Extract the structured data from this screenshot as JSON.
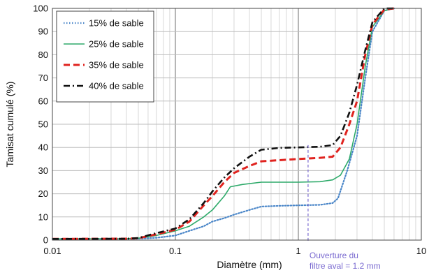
{
  "chart_data": {
    "type": "line",
    "xlabel": "Diamètre  (mm)",
    "ylabel": "Tamisat cumulé (%)",
    "xscale": "log",
    "xlim": [
      0.01,
      10
    ],
    "ylim": [
      0,
      100
    ],
    "grid": true,
    "legend_position": "top-left",
    "x_tick_labels": [
      "0.01",
      "0.1",
      "1",
      "10"
    ],
    "y_tick_labels": [
      "0",
      "10",
      "20",
      "30",
      "40",
      "50",
      "60",
      "70",
      "80",
      "90",
      "100"
    ],
    "series": [
      {
        "name": "15% de sable",
        "style": "dotted",
        "color": "#4a86c8",
        "points": [
          [
            0.01,
            0.5
          ],
          [
            0.04,
            0.5
          ],
          [
            0.05,
            0.6
          ],
          [
            0.07,
            1
          ],
          [
            0.1,
            2
          ],
          [
            0.13,
            4
          ],
          [
            0.17,
            6
          ],
          [
            0.2,
            8
          ],
          [
            0.25,
            9.5
          ],
          [
            0.3,
            11
          ],
          [
            0.4,
            13
          ],
          [
            0.5,
            14.5
          ],
          [
            0.7,
            14.8
          ],
          [
            1,
            15
          ],
          [
            1.5,
            15.2
          ],
          [
            1.9,
            16
          ],
          [
            2.1,
            18
          ],
          [
            2.5,
            30
          ],
          [
            3,
            45
          ],
          [
            3.5,
            70
          ],
          [
            4,
            90
          ],
          [
            5,
            99
          ],
          [
            6,
            100
          ]
        ]
      },
      {
        "name": "25% de sable",
        "style": "solid",
        "color": "#2eaa6a",
        "points": [
          [
            0.01,
            0.5
          ],
          [
            0.04,
            0.6
          ],
          [
            0.05,
            0.8
          ],
          [
            0.07,
            2
          ],
          [
            0.1,
            4
          ],
          [
            0.13,
            6
          ],
          [
            0.17,
            10
          ],
          [
            0.2,
            13
          ],
          [
            0.25,
            19
          ],
          [
            0.28,
            23
          ],
          [
            0.35,
            24
          ],
          [
            0.5,
            25
          ],
          [
            1,
            25
          ],
          [
            1.5,
            25.2
          ],
          [
            1.9,
            26
          ],
          [
            2.2,
            28
          ],
          [
            2.6,
            35
          ],
          [
            3,
            50
          ],
          [
            3.5,
            75
          ],
          [
            4,
            92
          ],
          [
            5,
            99
          ],
          [
            6,
            100
          ]
        ]
      },
      {
        "name": "35% de sable",
        "style": "dashed",
        "color": "#e0231f",
        "points": [
          [
            0.01,
            0.5
          ],
          [
            0.04,
            0.6
          ],
          [
            0.05,
            0.8
          ],
          [
            0.07,
            2.5
          ],
          [
            0.1,
            4.5
          ],
          [
            0.13,
            8
          ],
          [
            0.17,
            15
          ],
          [
            0.2,
            19
          ],
          [
            0.25,
            25
          ],
          [
            0.3,
            29
          ],
          [
            0.4,
            32
          ],
          [
            0.5,
            34
          ],
          [
            0.7,
            34.5
          ],
          [
            1,
            35
          ],
          [
            1.5,
            35.5
          ],
          [
            1.9,
            36
          ],
          [
            2.2,
            40
          ],
          [
            2.6,
            50
          ],
          [
            3,
            60
          ],
          [
            3.5,
            80
          ],
          [
            4,
            93
          ],
          [
            5,
            99.5
          ],
          [
            6,
            100
          ]
        ]
      },
      {
        "name": "40% de sable",
        "style": "dashdot",
        "color": "#111111",
        "points": [
          [
            0.01,
            0.5
          ],
          [
            0.04,
            0.6
          ],
          [
            0.05,
            0.9
          ],
          [
            0.07,
            3
          ],
          [
            0.1,
            5
          ],
          [
            0.13,
            9
          ],
          [
            0.17,
            16
          ],
          [
            0.2,
            21
          ],
          [
            0.25,
            27
          ],
          [
            0.3,
            31
          ],
          [
            0.4,
            36
          ],
          [
            0.5,
            39
          ],
          [
            0.7,
            39.8
          ],
          [
            1,
            40
          ],
          [
            1.5,
            40.3
          ],
          [
            1.9,
            41
          ],
          [
            2.2,
            45
          ],
          [
            2.6,
            55
          ],
          [
            3,
            67
          ],
          [
            3.5,
            82
          ],
          [
            4,
            94
          ],
          [
            5,
            100
          ],
          [
            6,
            100
          ]
        ]
      }
    ],
    "vertical_marker": {
      "x": 1.2,
      "color": "#7a6ad0",
      "label_lines": [
        "Ouverture du",
        "filtre aval = 1.2 mm"
      ]
    }
  }
}
